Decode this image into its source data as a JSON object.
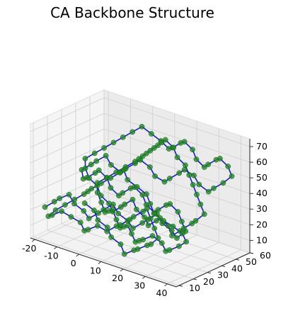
{
  "chart_data": {
    "type": "scatter",
    "title": "CA Backbone Structure",
    "xlabel": "",
    "ylabel": "",
    "zlabel": "",
    "xlim": [
      -22,
      44
    ],
    "ylim": [
      8,
      60
    ],
    "zlim": [
      2,
      75
    ],
    "x_ticks": [
      -20,
      -10,
      0,
      10,
      20,
      30,
      40
    ],
    "y_ticks": [
      10,
      20,
      30,
      40,
      50,
      60
    ],
    "z_ticks": [
      10,
      20,
      30,
      40,
      50,
      60,
      70
    ],
    "grid": true,
    "legend": "none",
    "colors": {
      "backbone_line": "#1a1ad6",
      "ca_atoms": "#1f8a1f",
      "pane": "#f2f2f2",
      "grid": "#d2d2d2"
    },
    "series": [
      {
        "kind": "line+markers",
        "note_points": "x,y,z triplets along the CA trace (approximate)",
        "points": [
          [
            -18,
            12,
            22
          ],
          [
            -15,
            14,
            26
          ],
          [
            -12,
            13,
            30
          ],
          [
            -9,
            15,
            33
          ],
          [
            -6,
            14,
            29
          ],
          [
            -3,
            16,
            25
          ],
          [
            0,
            15,
            22
          ],
          [
            3,
            17,
            26
          ],
          [
            6,
            16,
            30
          ],
          [
            9,
            18,
            34
          ],
          [
            12,
            17,
            30
          ],
          [
            15,
            19,
            26
          ],
          [
            18,
            18,
            23
          ],
          [
            21,
            20,
            27
          ],
          [
            24,
            19,
            31
          ],
          [
            27,
            21,
            35
          ],
          [
            30,
            20,
            31
          ],
          [
            33,
            22,
            27
          ],
          [
            36,
            21,
            24
          ],
          [
            38,
            24,
            28
          ],
          [
            35,
            26,
            32
          ],
          [
            32,
            28,
            36
          ],
          [
            29,
            27,
            40
          ],
          [
            26,
            29,
            37
          ],
          [
            23,
            28,
            33
          ],
          [
            20,
            30,
            29
          ],
          [
            17,
            29,
            33
          ],
          [
            14,
            31,
            37
          ],
          [
            11,
            30,
            41
          ],
          [
            8,
            32,
            38
          ],
          [
            5,
            31,
            34
          ],
          [
            2,
            33,
            30
          ],
          [
            -1,
            32,
            34
          ],
          [
            -4,
            34,
            38
          ],
          [
            -7,
            33,
            42
          ],
          [
            -10,
            35,
            38
          ],
          [
            -13,
            34,
            34
          ],
          [
            -16,
            36,
            31
          ],
          [
            -18,
            38,
            35
          ],
          [
            -15,
            40,
            39
          ],
          [
            -12,
            39,
            43
          ],
          [
            -9,
            41,
            47
          ],
          [
            -6,
            40,
            43
          ],
          [
            -3,
            42,
            39
          ],
          [
            0,
            41,
            43
          ],
          [
            3,
            43,
            47
          ],
          [
            6,
            42,
            51
          ],
          [
            9,
            44,
            47
          ],
          [
            12,
            43,
            43
          ],
          [
            15,
            45,
            40
          ],
          [
            18,
            44,
            44
          ],
          [
            21,
            46,
            48
          ],
          [
            24,
            45,
            52
          ],
          [
            27,
            47,
            49
          ],
          [
            30,
            46,
            45
          ],
          [
            33,
            48,
            41
          ],
          [
            36,
            47,
            45
          ],
          [
            39,
            49,
            49
          ],
          [
            41,
            52,
            53
          ],
          [
            38,
            54,
            57
          ],
          [
            35,
            53,
            61
          ],
          [
            32,
            55,
            58
          ],
          [
            29,
            54,
            54
          ],
          [
            26,
            56,
            50
          ],
          [
            23,
            55,
            54
          ],
          [
            20,
            57,
            58
          ],
          [
            17,
            56,
            62
          ],
          [
            14,
            58,
            59
          ],
          [
            11,
            57,
            55
          ],
          [
            8,
            59,
            52
          ],
          [
            5,
            58,
            56
          ],
          [
            2,
            56,
            60
          ],
          [
            -1,
            54,
            64
          ],
          [
            -4,
            52,
            60
          ],
          [
            -7,
            50,
            56
          ],
          [
            -10,
            48,
            52
          ],
          [
            -13,
            46,
            48
          ],
          [
            -16,
            44,
            44
          ],
          [
            -19,
            42,
            40
          ],
          [
            -17,
            39,
            36
          ],
          [
            -14,
            37,
            32
          ],
          [
            -11,
            38,
            28
          ],
          [
            -8,
            36,
            24
          ],
          [
            -5,
            37,
            20
          ],
          [
            -2,
            35,
            17
          ],
          [
            1,
            36,
            21
          ],
          [
            4,
            34,
            25
          ],
          [
            7,
            35,
            29
          ],
          [
            10,
            33,
            25
          ],
          [
            13,
            34,
            21
          ],
          [
            16,
            32,
            18
          ],
          [
            19,
            33,
            22
          ],
          [
            22,
            31,
            26
          ],
          [
            25,
            32,
            22
          ],
          [
            28,
            30,
            18
          ],
          [
            31,
            31,
            22
          ],
          [
            34,
            29,
            26
          ],
          [
            37,
            30,
            30
          ],
          [
            40,
            28,
            34
          ],
          [
            42,
            31,
            38
          ],
          [
            39,
            33,
            42
          ],
          [
            36,
            35,
            46
          ],
          [
            33,
            37,
            50
          ],
          [
            30,
            39,
            54
          ],
          [
            27,
            41,
            58
          ],
          [
            24,
            40,
            62
          ],
          [
            21,
            42,
            66
          ],
          [
            18,
            41,
            70
          ],
          [
            15,
            43,
            66
          ],
          [
            12,
            45,
            62
          ],
          [
            9,
            47,
            58
          ],
          [
            6,
            49,
            54
          ],
          [
            3,
            51,
            50
          ],
          [
            0,
            53,
            46
          ],
          [
            -3,
            55,
            42
          ],
          [
            -6,
            57,
            38
          ],
          [
            -9,
            55,
            34
          ],
          [
            -12,
            53,
            30
          ],
          [
            -15,
            51,
            26
          ],
          [
            -18,
            49,
            22
          ],
          [
            -16,
            46,
            18
          ],
          [
            -13,
            44,
            14
          ],
          [
            -10,
            42,
            10
          ],
          [
            -7,
            40,
            13
          ],
          [
            -4,
            38,
            16
          ],
          [
            -1,
            36,
            12
          ],
          [
            2,
            34,
            9
          ],
          [
            5,
            32,
            12
          ],
          [
            8,
            30,
            15
          ],
          [
            11,
            28,
            12
          ],
          [
            14,
            26,
            9
          ],
          [
            17,
            24,
            12
          ],
          [
            20,
            22,
            15
          ],
          [
            23,
            24,
            18
          ],
          [
            26,
            26,
            14
          ],
          [
            29,
            24,
            11
          ],
          [
            32,
            22,
            14
          ],
          [
            35,
            24,
            17
          ],
          [
            37,
            26,
            20
          ],
          [
            34,
            28,
            23
          ],
          [
            31,
            26,
            27
          ],
          [
            28,
            24,
            30
          ],
          [
            25,
            22,
            34
          ],
          [
            22,
            24,
            38
          ],
          [
            19,
            26,
            42
          ],
          [
            16,
            24,
            46
          ],
          [
            13,
            22,
            50
          ],
          [
            10,
            24,
            54
          ],
          [
            7,
            26,
            50
          ],
          [
            4,
            24,
            46
          ],
          [
            1,
            22,
            42
          ],
          [
            -2,
            20,
            38
          ],
          [
            -5,
            22,
            34
          ],
          [
            -8,
            24,
            30
          ],
          [
            -11,
            22,
            26
          ],
          [
            -14,
            20,
            22
          ],
          [
            -17,
            18,
            18
          ],
          [
            -19,
            16,
            14
          ],
          [
            -16,
            14,
            17
          ],
          [
            -13,
            16,
            20
          ],
          [
            -10,
            18,
            17
          ],
          [
            -7,
            20,
            14
          ],
          [
            -4,
            18,
            11
          ],
          [
            -1,
            16,
            14
          ],
          [
            2,
            18,
            17
          ],
          [
            5,
            20,
            14
          ],
          [
            8,
            22,
            18
          ],
          [
            11,
            20,
            21
          ],
          [
            14,
            22,
            25
          ],
          [
            17,
            20,
            29
          ],
          [
            20,
            22,
            33
          ],
          [
            23,
            20,
            37
          ],
          [
            26,
            18,
            33
          ],
          [
            29,
            16,
            29
          ],
          [
            32,
            14,
            25
          ],
          [
            30,
            12,
            21
          ],
          [
            27,
            14,
            18
          ],
          [
            24,
            12,
            15
          ],
          [
            21,
            14,
            12
          ],
          [
            18,
            12,
            9
          ],
          [
            15,
            14,
            13
          ],
          [
            12,
            12,
            17
          ],
          [
            9,
            14,
            21
          ],
          [
            6,
            12,
            25
          ],
          [
            3,
            14,
            29
          ],
          [
            0,
            12,
            33
          ]
        ]
      }
    ]
  }
}
